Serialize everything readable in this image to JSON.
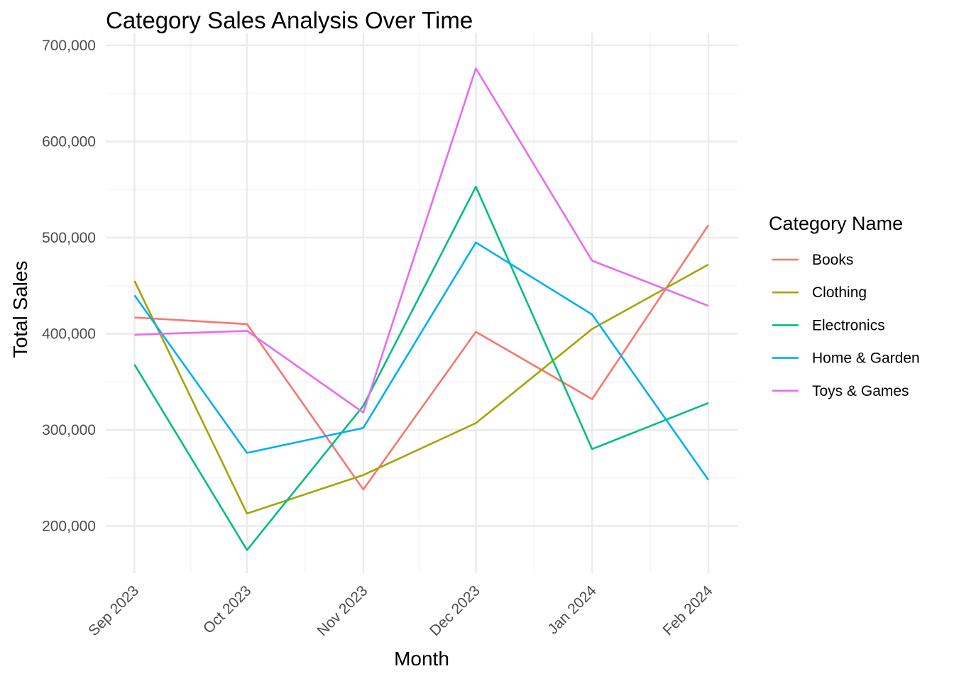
{
  "chart_data": {
    "type": "line",
    "title": "Category Sales Analysis Over Time",
    "xlabel": "Month",
    "ylabel": "Total Sales",
    "categories": [
      "Sep 2023",
      "Oct 2023",
      "Nov 2023",
      "Dec 2023",
      "Jan 2024",
      "Feb 2024"
    ],
    "x_dates": [
      "2023-09-01",
      "2023-10-01",
      "2023-11-01",
      "2023-12-01",
      "2024-01-01",
      "2024-02-01"
    ],
    "ylim": [
      150000,
      700000
    ],
    "y_ticks": [
      200000,
      300000,
      400000,
      500000,
      600000,
      700000
    ],
    "y_tick_labels": [
      "200,000",
      "300,000",
      "400,000",
      "500,000",
      "600,000",
      "700,000"
    ],
    "grid": true,
    "legend": {
      "title": "Category Name",
      "position": "right"
    },
    "series": [
      {
        "name": "Books",
        "color": "#F8766D",
        "values": [
          417000,
          410000,
          238000,
          402000,
          332000,
          513000
        ]
      },
      {
        "name": "Clothing",
        "color": "#A3A500",
        "values": [
          455000,
          213000,
          253000,
          307000,
          405000,
          472000
        ]
      },
      {
        "name": "Electronics",
        "color": "#00BF7D",
        "values": [
          368000,
          175000,
          325000,
          553000,
          280000,
          328000
        ]
      },
      {
        "name": "Home & Garden",
        "color": "#00B0F6",
        "values": [
          440000,
          276000,
          302000,
          495000,
          420000,
          248000
        ]
      },
      {
        "name": "Toys & Games",
        "color": "#E76BF3",
        "values": [
          399000,
          403000,
          318000,
          676000,
          476000,
          429000
        ]
      }
    ]
  }
}
